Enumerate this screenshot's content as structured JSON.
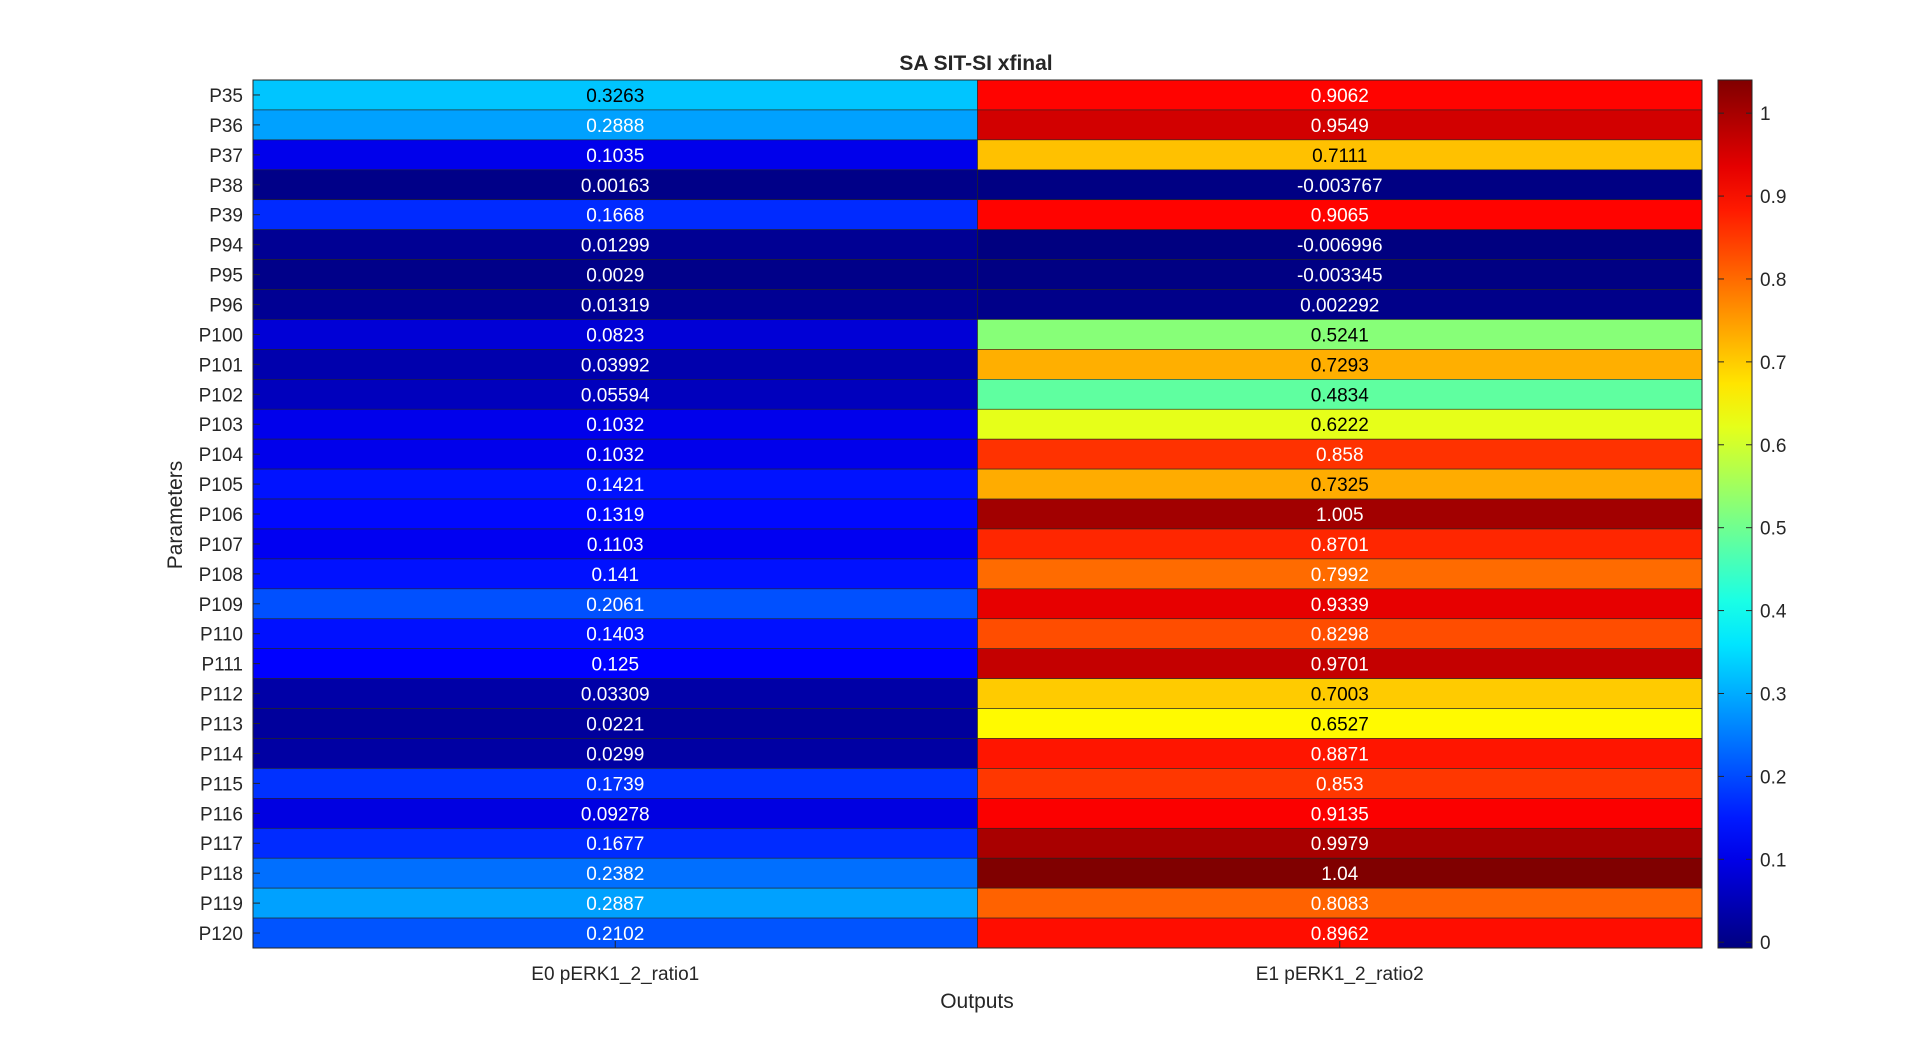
{
  "chart_data": {
    "type": "heatmap",
    "title": "SA SIT-SI xfinal",
    "xlabel": "Outputs",
    "ylabel": "Parameters",
    "columns": [
      "E0 pERK1_2_ratio1",
      "E1 pERK1_2_ratio2"
    ],
    "rows": [
      "P35",
      "P36",
      "P37",
      "P38",
      "P39",
      "P94",
      "P95",
      "P96",
      "P100",
      "P101",
      "P102",
      "P103",
      "P104",
      "P105",
      "P106",
      "P107",
      "P108",
      "P109",
      "P110",
      "P111",
      "P112",
      "P113",
      "P114",
      "P115",
      "P116",
      "P117",
      "P118",
      "P119",
      "P120"
    ],
    "values": [
      [
        "0.3263",
        "0.9062"
      ],
      [
        "0.2888",
        "0.9549"
      ],
      [
        "0.1035",
        "0.7111"
      ],
      [
        "0.00163",
        "-0.003767"
      ],
      [
        "0.1668",
        "0.9065"
      ],
      [
        "0.01299",
        "-0.006996"
      ],
      [
        "0.0029",
        "-0.003345"
      ],
      [
        "0.01319",
        "0.002292"
      ],
      [
        "0.0823",
        "0.5241"
      ],
      [
        "0.03992",
        "0.7293"
      ],
      [
        "0.05594",
        "0.4834"
      ],
      [
        "0.1032",
        "0.6222"
      ],
      [
        "0.1032",
        "0.858"
      ],
      [
        "0.1421",
        "0.7325"
      ],
      [
        "0.1319",
        "1.005"
      ],
      [
        "0.1103",
        "0.8701"
      ],
      [
        "0.141",
        "0.7992"
      ],
      [
        "0.2061",
        "0.9339"
      ],
      [
        "0.1403",
        "0.8298"
      ],
      [
        "0.125",
        "0.9701"
      ],
      [
        "0.03309",
        "0.7003"
      ],
      [
        "0.0221",
        "0.6527"
      ],
      [
        "0.0299",
        "0.8871"
      ],
      [
        "0.1739",
        "0.853"
      ],
      [
        "0.09278",
        "0.9135"
      ],
      [
        "0.1677",
        "0.9979"
      ],
      [
        "0.2382",
        "1.04"
      ],
      [
        "0.2887",
        "0.8083"
      ],
      [
        "0.2102",
        "0.8962"
      ]
    ],
    "colorbar": {
      "colormap": "jet",
      "range": [
        -0.006996,
        1.04
      ],
      "ticks": [
        "0",
        "0.1",
        "0.2",
        "0.3",
        "0.4",
        "0.5",
        "0.6",
        "0.7",
        "0.8",
        "0.9",
        "1"
      ]
    },
    "grid": false,
    "legend": "colorbar-right"
  }
}
